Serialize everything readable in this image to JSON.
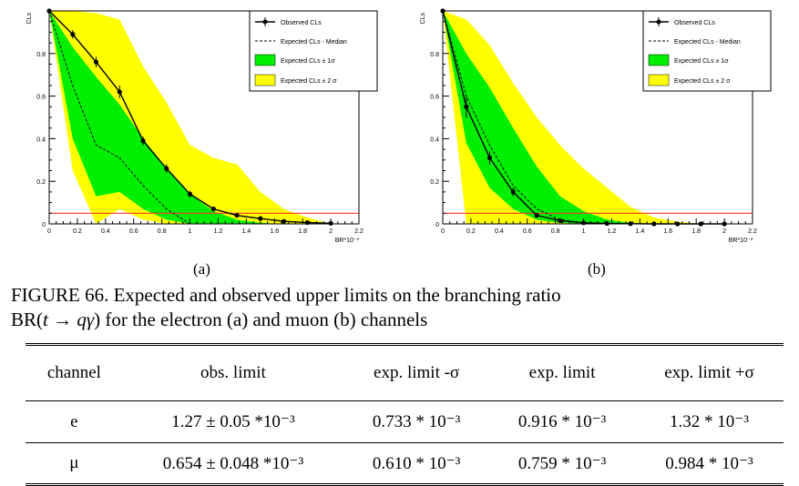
{
  "figure": {
    "panels": [
      {
        "id": "a",
        "sublabel": "(a)"
      },
      {
        "id": "b",
        "sublabel": "(b)"
      }
    ],
    "caption_line1": "FIGURE 66. Expected and observed upper limits on the branching ratio",
    "caption_line2_prefix": "BR(",
    "caption_line2_expr": "t → qγ",
    "caption_line2_suffix": ") for the electron (a) and muon (b) channels"
  },
  "chart_data": [
    {
      "type": "line",
      "panel": "a",
      "ylabel": "CLs",
      "xlabel": "BR*10⁻³",
      "xlim": [
        0,
        2.2
      ],
      "ylim": [
        0,
        1.0
      ],
      "xticks": [
        "0",
        "0.2",
        "0.4",
        "0.6",
        "0.8",
        "1",
        "1.2",
        "1.4",
        "1.6",
        "1.8",
        "2",
        "2.2"
      ],
      "yticks": [
        "0",
        "0.2",
        "0.4",
        "0.6",
        "0.8"
      ],
      "legend": [
        "Observed CLs",
        "Expected CLs - Median",
        "Expected CLs ± 1σ",
        "Expected CLs ± 2 σ"
      ],
      "legend_position": "top-right",
      "reference_line": 0.05,
      "x": [
        0,
        0.167,
        0.333,
        0.5,
        0.667,
        0.833,
        1.0,
        1.167,
        1.333,
        1.5,
        1.667,
        1.833,
        2.0
      ],
      "observed": [
        1.0,
        0.89,
        0.76,
        0.62,
        0.39,
        0.26,
        0.14,
        0.07,
        0.04,
        0.025,
        0.012,
        0.006,
        0.003
      ],
      "observed_err": [
        0,
        0.02,
        0.025,
        0.03,
        0.02,
        0.02,
        0.015,
        0.01,
        0.005,
        0.005,
        0.003,
        0.002,
        0.001
      ],
      "expected": [
        1.0,
        0.65,
        0.37,
        0.31,
        0.18,
        0.07,
        0.0,
        0,
        0,
        0,
        0,
        0,
        0
      ],
      "band1_low": [
        1.0,
        0.4,
        0.13,
        0.15,
        0.07,
        0.02,
        0.0,
        0,
        0,
        0,
        0,
        0,
        0
      ],
      "band1_high": [
        1.0,
        0.83,
        0.69,
        0.56,
        0.4,
        0.26,
        0.14,
        0.06,
        0.02,
        0.005,
        0,
        0,
        0
      ],
      "band2_low": [
        1.0,
        0.25,
        0.0,
        0.07,
        0.02,
        0.0,
        0,
        0,
        0,
        0,
        0,
        0,
        0
      ],
      "band2_high": [
        1.0,
        1.0,
        0.99,
        0.96,
        0.74,
        0.57,
        0.37,
        0.31,
        0.28,
        0.15,
        0.07,
        0.03,
        0.0
      ]
    },
    {
      "type": "line",
      "panel": "b",
      "ylabel": "CLs",
      "xlabel": "BR*10⁻³",
      "xlim": [
        0,
        2.2
      ],
      "ylim": [
        0,
        1.0
      ],
      "xticks": [
        "0",
        "0.2",
        "0.4",
        "0.6",
        "0.8",
        "1",
        "1.2",
        "1.4",
        "1.6",
        "1.8",
        "2",
        "2.2"
      ],
      "yticks": [
        "0",
        "0.2",
        "0.4",
        "0.6",
        "0.8"
      ],
      "legend": [
        "Observed CLs",
        "Expected CLs - Median",
        "Expected CLs ± 1σ",
        "Expected CLs ± 2 σ"
      ],
      "legend_position": "top-right",
      "reference_line": 0.05,
      "x": [
        0,
        0.167,
        0.333,
        0.5,
        0.667,
        0.833,
        1.0,
        1.167,
        1.333,
        1.5,
        1.667,
        1.833,
        2.0
      ],
      "observed": [
        1.0,
        0.55,
        0.31,
        0.15,
        0.04,
        0.015,
        0.005,
        0.002,
        0.001,
        0.0,
        0.0,
        0.0,
        0.0
      ],
      "observed_err": [
        0,
        0.05,
        0.03,
        0.02,
        0.01,
        0.005,
        0.002,
        0.001,
        0,
        0,
        0,
        0,
        0
      ],
      "expected": [
        1.0,
        0.6,
        0.37,
        0.18,
        0.07,
        0.02,
        0.005,
        0,
        0,
        0,
        0,
        0,
        0
      ],
      "band1_low": [
        1.0,
        0.38,
        0.17,
        0.07,
        0.02,
        0.005,
        0,
        0,
        0,
        0,
        0,
        0,
        0
      ],
      "band1_high": [
        1.0,
        0.8,
        0.64,
        0.45,
        0.27,
        0.13,
        0.06,
        0.02,
        0.005,
        0,
        0,
        0,
        0
      ],
      "band2_low": [
        1.0,
        0.0,
        0.0,
        0.0,
        0,
        0,
        0,
        0,
        0,
        0,
        0,
        0,
        0
      ],
      "band2_high": [
        1.0,
        0.96,
        0.84,
        0.66,
        0.5,
        0.37,
        0.26,
        0.17,
        0.08,
        0.03,
        0.01,
        0.0,
        0.0
      ]
    }
  ],
  "table": {
    "headers": [
      "channel",
      "obs. limit",
      "exp. limit -σ",
      "exp. limit",
      "exp. limit +σ"
    ],
    "rows": [
      [
        "e",
        "1.27 ± 0.05 *10⁻³",
        "0.733 * 10⁻³",
        "0.916 * 10⁻³",
        "1.32 * 10⁻³"
      ],
      [
        "μ",
        "0.654 ± 0.048 *10⁻³",
        "0.610 * 10⁻³",
        "0.759 * 10⁻³",
        "0.984 * 10⁻³"
      ]
    ]
  },
  "colors": {
    "band1": "#00ee00",
    "band2": "#ffff00",
    "observed": "#000000",
    "expected": "#000000",
    "reference": "#ff3333"
  }
}
